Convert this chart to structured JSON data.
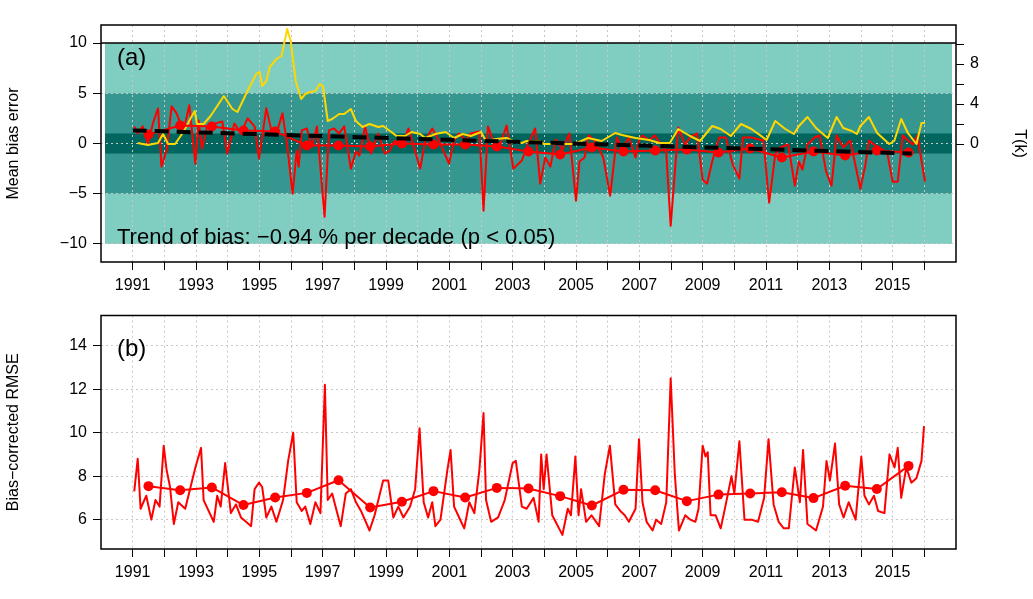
{
  "chart_data": [
    {
      "type": "line",
      "ylabel": "Mean bias error",
      "y2label": "T(k)",
      "annotations": [
        "(a)",
        "Trend of bias: −0.94 % per decade (p < 0.05)"
      ],
      "xlim": [
        1990,
        2017
      ],
      "xticks": [
        1991,
        {
          "value": 1992,
          "label": null
        },
        1993,
        {
          "value": 1994,
          "label": null
        },
        1995,
        {
          "value": 1996,
          "label": null
        },
        1997,
        {
          "value": 1998,
          "label": null
        },
        1999,
        {
          "value": 2000,
          "label": null
        },
        2001,
        {
          "value": 2002,
          "label": null
        },
        2003,
        {
          "value": 2004,
          "label": null
        },
        2005,
        {
          "value": 2006,
          "label": null
        },
        2007,
        {
          "value": 2008,
          "label": null
        },
        2009,
        {
          "value": 2010,
          "label": null
        },
        2011,
        {
          "value": 2012,
          "label": null
        },
        2013,
        {
          "value": 2014,
          "label": null
        },
        2015,
        {
          "value": 2016,
          "label": null
        }
      ],
      "ylim": [
        -11.8,
        11.8
      ],
      "yticks": [
        {
          "value": -10,
          "label": "−10"
        },
        {
          "value": -5,
          "label": "−5"
        },
        0,
        5,
        10
      ],
      "y2lim": [
        -11.8,
        11.9
      ],
      "y2ticks": [
        0,
        {
          "value": 2,
          "label": null
        },
        4,
        {
          "value": 6,
          "label": null
        },
        8,
        {
          "value": 10,
          "label": null
        }
      ],
      "grid": true,
      "bands": [
        {
          "axis": "y",
          "from": -10,
          "to": 10,
          "color": "#80cdc1"
        },
        {
          "axis": "y",
          "from": -5,
          "to": 5,
          "color": "#35978f"
        },
        {
          "axis": "y",
          "from": -1,
          "to": 1,
          "color": "#01665e"
        }
      ],
      "ref_lines": [
        {
          "axis": "y",
          "value": 10,
          "color": "#000000"
        }
      ],
      "series": [
        {
          "color": "#ff0000",
          "x": [
            1991.05,
            1991.16,
            1991.32,
            1991.48,
            1991.64,
            1991.8,
            1991.91,
            1992.07,
            1992.23,
            1992.39,
            1992.6,
            1992.79,
            1992.98,
            1993.08,
            1993.19,
            1993.35,
            1993.62,
            1993.83,
            1993.99,
            1994.21,
            1994.42,
            1994.63,
            1994.85,
            1994.99,
            1995.22,
            1995.38,
            1995.54,
            1995.73,
            1995.86,
            1996.05,
            1996.18,
            1996.24,
            1996.34,
            1996.5,
            1996.66,
            1996.82,
            1997.06,
            1997.2,
            1997.36,
            1997.52,
            1997.68,
            1997.89,
            1998.05,
            1998.16,
            1998.34,
            1998.53,
            1998.75,
            1998.96,
            1999.12,
            1999.28,
            1999.49,
            1999.71,
            2000.08,
            2000.24,
            2000.46,
            2000.67,
            2000.99,
            2001.15,
            2001.31,
            2001.52,
            2001.68,
            2001.95,
            2002.08,
            2002.22,
            2002.38,
            2002.59,
            2002.81,
            2003.02,
            2003.29,
            2003.44,
            2003.71,
            2003.87,
            2004.03,
            2004.19,
            2004.36,
            2004.57,
            2004.79,
            2005.0,
            2005.11,
            2005.27,
            2005.4,
            2005.59,
            2005.86,
            2006.08,
            2006.29,
            2006.45,
            2006.67,
            2006.88,
            2006.99,
            2007.1,
            2007.31,
            2007.48,
            2007.69,
            2007.85,
            2007.99,
            2008.23,
            2008.45,
            2008.6,
            2008.82,
            2009.0,
            2009.14,
            2009.3,
            2009.52,
            2009.73,
            2009.95,
            2010.16,
            2010.27,
            2010.54,
            2010.92,
            2011.1,
            2011.29,
            2011.45,
            2011.7,
            2011.91,
            2012.04,
            2012.15,
            2012.31,
            2012.53,
            2012.69,
            2012.9,
            2013.07,
            2013.23,
            2013.44,
            2013.66,
            2013.98,
            2014.14,
            2014.25,
            2014.41,
            2014.68,
            2014.84,
            2015.0,
            2015.16,
            2015.32,
            2015.48,
            2015.64,
            2015.78,
            2016.02
          ],
          "values": [
            1.7,
            1.0,
            1.7,
            0,
            2,
            3.5,
            -2.3,
            -0.7,
            3.7,
            3,
            1.2,
            3.8,
            -2,
            2.3,
            -0.5,
            1.7,
            2,
            2.2,
            -1,
            2,
            1,
            2.5,
            1.7,
            -1.5,
            3.5,
            1.3,
            1,
            3,
            0.3,
            -5,
            -0.7,
            -2.3,
            1.3,
            1.5,
            -0.3,
            1.7,
            -7.3,
            1.3,
            1.5,
            1,
            1.7,
            -2.5,
            -0.8,
            -1.2,
            1.7,
            -1,
            1,
            -1,
            -0.7,
            0.3,
            -0.3,
            1.5,
            -2.5,
            0.3,
            1.5,
            0.3,
            -2,
            0.3,
            1,
            0.3,
            1,
            1.2,
            -6.7,
            1.7,
            0.3,
            -0.3,
            1.8,
            -2.5,
            -1.7,
            -0.4,
            1.5,
            -4,
            -1.4,
            -2.3,
            0.4,
            -0.6,
            1,
            -5.7,
            -1.8,
            -1.4,
            0.8,
            0.3,
            -1.4,
            -5.2,
            0.6,
            -0.6,
            0.6,
            -1.4,
            0.3,
            0.8,
            0.3,
            0.8,
            -0.1,
            -0.9,
            -8.2,
            1.6,
            -0.1,
            0.6,
            1,
            -3.6,
            -4,
            -1.8,
            0.6,
            0.6,
            -2.1,
            -3.5,
            0.6,
            0.6,
            0.3,
            -5.9,
            -1.1,
            -0.4,
            -0.1,
            -4.2,
            -1.8,
            -2.6,
            -0.1,
            0.6,
            0.8,
            -2.8,
            -4.2,
            0.8,
            -0.4,
            0.3,
            -4.5,
            -2.1,
            0.3,
            -0.1,
            -0.6,
            -1.1,
            -3.8,
            -3.8,
            0.8,
            0.3,
            -0.1,
            0.8,
            -3.8
          ]
        },
        {
          "color": "#ffd700",
          "axis": "y2",
          "x": [
            1991.16,
            1991.48,
            1991.8,
            1991.96,
            1992.12,
            1992.34,
            1992.6,
            1992.87,
            1992.96,
            1993.03,
            1993.24,
            1993.46,
            1993.88,
            1994.15,
            1994.31,
            1994.58,
            1994.9,
            1995.01,
            1995.09,
            1995.22,
            1995.33,
            1995.54,
            1995.7,
            1995.88,
            1995.99,
            1996.15,
            1996.32,
            1996.45,
            1996.61,
            1996.77,
            1996.91,
            1997.01,
            1997.16,
            1997.3,
            1997.52,
            1997.68,
            1997.89,
            1998.05,
            1998.26,
            1998.48,
            1998.75,
            1998.91,
            1999.17,
            1999.33,
            1999.6,
            1999.81,
            2000.08,
            2000.24,
            2000.56,
            2000.88,
            2001.15,
            2001.42,
            2001.68,
            2002.0,
            2002.16,
            2002.48,
            2002.81,
            2003.02,
            2003.29,
            2003.44,
            2003.87,
            2003.98,
            2004.95,
            2005.38,
            2005.81,
            2006.24,
            2006.45,
            2006.88,
            2007.31,
            2007.63,
            2007.96,
            2008.23,
            2008.6,
            2008.92,
            2009.3,
            2009.57,
            2009.89,
            2010.21,
            2010.54,
            2011.02,
            2011.29,
            2011.61,
            2011.88,
            2012.04,
            2012.31,
            2012.58,
            2012.95,
            2013.23,
            2013.44,
            2013.71,
            2013.87,
            2013.98,
            2014.25,
            2014.51,
            2014.89,
            2015.05,
            2015.27,
            2015.48,
            2015.75,
            2015.91,
            2016.02
          ],
          "values": [
            0.1,
            -0.1,
            0.1,
            1,
            0,
            0,
            1.2,
            2.8,
            3.3,
            2,
            2,
            2.8,
            4.8,
            3.5,
            3.2,
            5,
            7,
            7.2,
            5.8,
            6.3,
            7.7,
            8.5,
            8.8,
            11.5,
            10.3,
            6.3,
            4.5,
            5,
            5.2,
            5.3,
            6,
            5.8,
            2.3,
            2.5,
            3,
            3,
            3.5,
            2.3,
            1.7,
            2,
            1.7,
            1.8,
            1.2,
            0.8,
            0.8,
            1.2,
            1,
            0.6,
            1,
            1.2,
            0.6,
            1,
            0.8,
            1.2,
            0.3,
            0.5,
            0.6,
            0.3,
            0.1,
            0.3,
            0.3,
            0,
            0,
            0.6,
            0.3,
            1.1,
            0.9,
            0.6,
            0.4,
            0.1,
            0.1,
            1.5,
            0.8,
            0.3,
            1.8,
            1.5,
            0.8,
            2,
            1.5,
            0.4,
            2.3,
            1.5,
            1,
            1.8,
            2.7,
            1.6,
            0.6,
            2.7,
            1.6,
            1.3,
            1,
            1.8,
            2.7,
            1.1,
            0,
            0.3,
            2.5,
            1.1,
            0,
            2.1,
            2.1
          ]
        },
        {
          "color": "#ff0000",
          "marker": "circle",
          "x": [
            1991.5,
            1992.5,
            1993.5,
            1994.5,
            1995.5,
            1996.5,
            1997.5,
            1998.5,
            1999.5,
            2000.5,
            2001.5,
            2002.5,
            2003.5,
            2004.5,
            2005.5,
            2006.5,
            2007.5,
            2008.5,
            2009.5,
            2010.5,
            2011.5,
            2012.5,
            2013.5,
            2014.5,
            2015.5
          ],
          "values": [
            0.9,
            1.8,
            1.7,
            1.3,
            1.2,
            -0.2,
            -0.2,
            -0.3,
            0,
            -0.1,
            -0.1,
            -0.3,
            -0.8,
            -1.1,
            -0.4,
            -0.8,
            -0.7,
            -0.6,
            -0.9,
            -0.5,
            -1.4,
            -0.8,
            -1.2,
            -0.7,
            -0.9
          ]
        },
        {
          "color": "#000000",
          "line_style": "dashed",
          "x": [
            1991,
            2015.6
          ],
          "values": [
            1.3,
            -1.0
          ]
        }
      ]
    },
    {
      "type": "line",
      "ylabel": "Bias−corrected RMSE",
      "annotations": [
        "(b)"
      ],
      "xlim": [
        1990,
        2017
      ],
      "xticks": [
        1991,
        {
          "value": 1992,
          "label": null
        },
        1993,
        {
          "value": 1994,
          "label": null
        },
        1995,
        {
          "value": 1996,
          "label": null
        },
        1997,
        {
          "value": 1998,
          "label": null
        },
        1999,
        {
          "value": 2000,
          "label": null
        },
        2001,
        {
          "value": 2002,
          "label": null
        },
        2003,
        {
          "value": 2004,
          "label": null
        },
        2005,
        {
          "value": 2006,
          "label": null
        },
        2007,
        {
          "value": 2008,
          "label": null
        },
        2009,
        {
          "value": 2010,
          "label": null
        },
        2011,
        {
          "value": 2012,
          "label": null
        },
        2013,
        {
          "value": 2014,
          "label": null
        },
        2015,
        {
          "value": 2016,
          "label": null
        }
      ],
      "ylim": [
        4.65,
        15.38
      ],
      "yticks": [
        6,
        8,
        10,
        12,
        14
      ],
      "grid": true,
      "series": [
        {
          "color": "#ff0000",
          "x": [
            1991.05,
            1991.16,
            1991.25,
            1991.43,
            1991.59,
            1991.72,
            1991.85,
            1991.98,
            1992.07,
            1992.18,
            1992.3,
            1992.44,
            1992.66,
            1992.76,
            1992.98,
            1993.16,
            1993.24,
            1993.56,
            1993.67,
            1993.78,
            1993.92,
            1994.1,
            1994.26,
            1994.42,
            1994.58,
            1994.74,
            1994.85,
            1994.99,
            1995.09,
            1995.22,
            1995.38,
            1995.54,
            1995.75,
            1995.91,
            1996.07,
            1996.18,
            1996.34,
            1996.45,
            1996.61,
            1996.77,
            1996.93,
            1997.07,
            1997.16,
            1997.3,
            1997.46,
            1997.57,
            1997.73,
            1997.89,
            1998.05,
            1998.21,
            1998.48,
            1998.64,
            1998.91,
            1999.07,
            1999.23,
            1999.39,
            1999.55,
            1999.76,
            1999.92,
            2000.06,
            2000.19,
            2000.33,
            2000.46,
            2000.56,
            2000.72,
            2000.94,
            2001.04,
            2001.15,
            2001.31,
            2001.47,
            2001.63,
            2001.79,
            2001.95,
            2002.08,
            2002.16,
            2002.32,
            2002.54,
            2002.75,
            2003.0,
            2003.1,
            2003.29,
            2003.44,
            2003.66,
            2003.82,
            2003.9,
            2003.98,
            2004.07,
            2004.25,
            2004.57,
            2004.74,
            2004.84,
            2004.98,
            2005.08,
            2005.16,
            2005.32,
            2005.49,
            2005.73,
            2005.91,
            2006.07,
            2006.24,
            2006.4,
            2006.54,
            2006.67,
            2006.88,
            2006.99,
            2007.1,
            2007.23,
            2007.42,
            2007.53,
            2007.69,
            2007.85,
            2007.99,
            2008.12,
            2008.25,
            2008.45,
            2008.61,
            2008.77,
            2008.87,
            2009.0,
            2009.09,
            2009.16,
            2009.25,
            2009.41,
            2009.57,
            2009.73,
            2009.91,
            2010.0,
            2010.16,
            2010.32,
            2010.54,
            2010.75,
            2010.94,
            2011.08,
            2011.24,
            2011.4,
            2011.56,
            2011.72,
            2011.91,
            2012.07,
            2012.17,
            2012.31,
            2012.58,
            2012.8,
            2012.91,
            2013.02,
            2013.18,
            2013.31,
            2013.45,
            2013.61,
            2013.83,
            2014.01,
            2014.11,
            2014.25,
            2014.41,
            2014.54,
            2014.74,
            2014.9,
            2015.06,
            2015.16,
            2015.27,
            2015.43,
            2015.59,
            2015.75,
            2015.91,
            2015.99
          ],
          "values": [
            7.3,
            8.8,
            6.5,
            7.1,
            6,
            6.9,
            6.6,
            9.4,
            8.3,
            7.5,
            5.8,
            6.8,
            6.5,
            7.1,
            8.4,
            9.3,
            6.9,
            5.9,
            7.1,
            6.6,
            8.6,
            6.3,
            6.7,
            6.1,
            5.9,
            5.7,
            7.4,
            7.7,
            7.5,
            6.1,
            6.6,
            5.9,
            6.9,
            8.7,
            10,
            6.8,
            6.4,
            6.6,
            5.8,
            6.8,
            6.3,
            12.2,
            6.9,
            7.2,
            6.3,
            5.7,
            7.2,
            7.4,
            6.8,
            6.4,
            5.5,
            6.2,
            7.8,
            7.8,
            6.1,
            6.6,
            6.1,
            6.6,
            7.4,
            10.2,
            6.8,
            6.1,
            6.8,
            5.7,
            6,
            8.3,
            9.2,
            6.6,
            6.1,
            5.6,
            6.8,
            6.3,
            8.3,
            10.9,
            6.9,
            5.9,
            6.1,
            6.9,
            8.6,
            8.7,
            6.6,
            6.5,
            7,
            5.9,
            9,
            7.4,
            9,
            6.2,
            5.3,
            6.5,
            6.2,
            8.9,
            6.2,
            7.4,
            5.9,
            6.2,
            5.7,
            8.1,
            9.4,
            6.7,
            6.4,
            6.2,
            5.9,
            6.5,
            9.7,
            6.8,
            5.9,
            5.5,
            6,
            5.8,
            6.8,
            12.5,
            8.1,
            5.5,
            6.2,
            6,
            5.9,
            6.5,
            9.4,
            8.9,
            9.1,
            6.2,
            6.2,
            5.6,
            6.7,
            8,
            7.2,
            9.6,
            6,
            6,
            5.9,
            7,
            9.7,
            6.7,
            5.9,
            5.6,
            5.6,
            8.4,
            6.8,
            9.2,
            5.8,
            5.5,
            6.6,
            8.7,
            7.8,
            9.5,
            6.7,
            6.1,
            6.8,
            6,
            8.9,
            7.1,
            6.7,
            7.1,
            6.4,
            6.3,
            9,
            8.4,
            9.3,
            7,
            8.4,
            7.7,
            7.9,
            8.7,
            10.3
          ]
        },
        {
          "color": "#ff0000",
          "marker": "circle",
          "x": [
            1991.5,
            1992.5,
            1993.5,
            1994.5,
            1995.5,
            1996.5,
            1997.5,
            1998.5,
            1999.5,
            2000.5,
            2001.5,
            2002.5,
            2003.5,
            2004.5,
            2005.5,
            2006.5,
            2007.5,
            2008.5,
            2009.5,
            2010.5,
            2011.5,
            2012.5,
            2013.5,
            2014.5,
            2015.5
          ],
          "values": [
            7.54,
            7.35,
            7.48,
            6.67,
            7.02,
            7.23,
            7.81,
            6.56,
            6.82,
            7.31,
            7.02,
            7.46,
            7.43,
            7.08,
            6.65,
            7.37,
            7.35,
            6.85,
            7.15,
            7.2,
            7.26,
            6.99,
            7.56,
            7.41,
            8.47
          ]
        }
      ]
    }
  ]
}
